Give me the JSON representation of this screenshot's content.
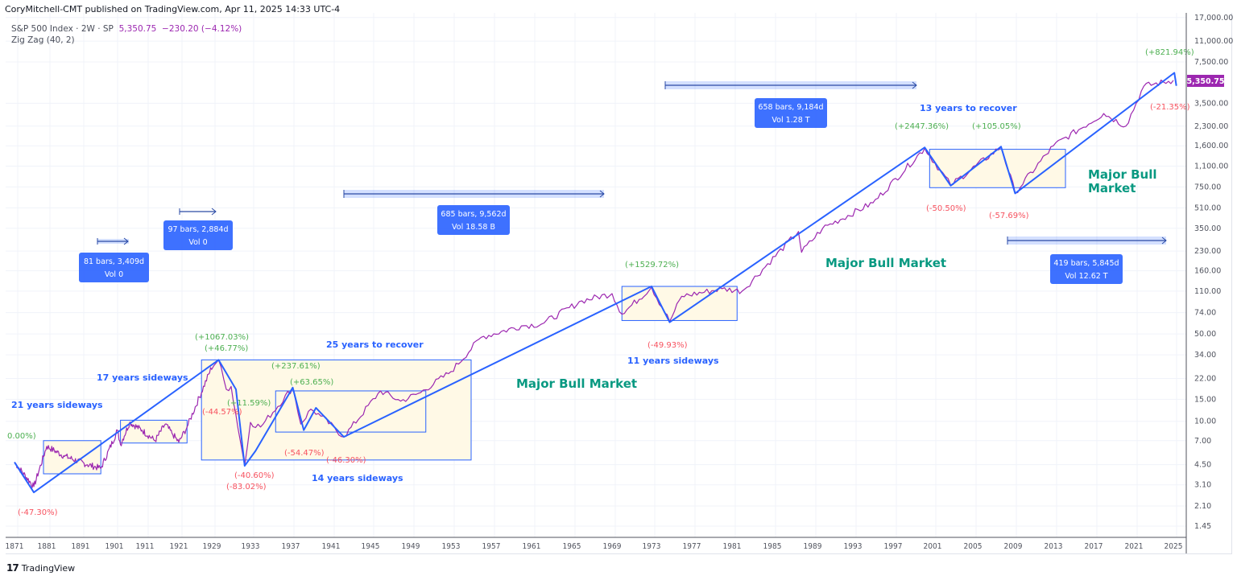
{
  "header": {
    "publisher_line": "CoryMitchell-CMT published on TradingView.com, Apr 11, 2025 14:33 UTC-4"
  },
  "legend": {
    "symbol": "S&P 500 Index · 2W · SP",
    "price": "5,350.75",
    "change": "−230.20 (−4.12%)",
    "indicator": "Zig Zag (40, 2)"
  },
  "price_badge": {
    "value": "5,350.75",
    "color": "#9c27b0"
  },
  "footer": {
    "logo_mark": "17",
    "brand": "TradingView"
  },
  "colors": {
    "price_line": "#9c27b0",
    "zigzag": "#2962ff",
    "range_box_fill": "#fff9e6",
    "range_box_stroke": "#2962ff",
    "up_label": "#4caf50",
    "down_label": "#f7525f",
    "note_blue": "#2962ff",
    "note_green": "#089981",
    "measure_box": "#2962ff"
  },
  "chart_data": {
    "type": "line",
    "title": "S&P 500 Index · 2W · SP",
    "scale": "log",
    "xlabel": "",
    "ylabel": "",
    "x_ticks": [
      "1871",
      "1881",
      "1891",
      "1901",
      "1911",
      "1921",
      "1929",
      "1933",
      "1937",
      "1941",
      "1945",
      "1949",
      "1953",
      "1957",
      "1961",
      "1965",
      "1969",
      "1973",
      "1977",
      "1981",
      "1985",
      "1989",
      "1993",
      "1997",
      "2001",
      "2005",
      "2009",
      "2013",
      "2017",
      "2021",
      "2025"
    ],
    "y_ticks": [
      "17,000.00",
      "11,000.00",
      "7,500.00",
      "3,500.00",
      "2,300.00",
      "1,600.00",
      "1,100.00",
      "750.00",
      "510.00",
      "350.00",
      "230.00",
      "160.00",
      "110.00",
      "74.00",
      "50.00",
      "34.00",
      "22.00",
      "15.00",
      "10.00",
      "7.00",
      "4.50",
      "3.10",
      "2.10",
      "1.45"
    ],
    "ylim": [
      1.3,
      17000
    ],
    "last_value": 5350.75,
    "series": [
      {
        "name": "S&P 500 (2W)",
        "x": [
          1871,
          1877,
          1881,
          1886,
          1893,
          1897,
          1902,
          1903,
          1906,
          1910,
          1914,
          1917,
          1919,
          1921,
          1923,
          1929.7,
          1930.5,
          1931,
          1932.4,
          1933,
          1934,
          1937.2,
          1938,
          1939,
          1940,
          1942.3,
          1946,
          1948,
          1950,
          1953,
          1956,
          1960,
          1962,
          1966,
          1969,
          1970,
          1973,
          1974.8,
          1976,
          1980,
          1982,
          1987.6,
          1987.9,
          1990,
          1995,
          2000.2,
          2002.8,
          2007.8,
          2009.2,
          2013,
          2018,
          2020.2,
          2022,
          2025
        ],
        "values": [
          4.7,
          3.0,
          6.3,
          5.3,
          4.5,
          4.2,
          8.5,
          6.5,
          9.8,
          8.5,
          7.0,
          9.5,
          8.0,
          6.8,
          9.0,
          31,
          18,
          19,
          4.4,
          9.8,
          9.0,
          18.6,
          9.5,
          12.5,
          11.0,
          7.5,
          17.5,
          14.5,
          17,
          25,
          47,
          58,
          60,
          92,
          105,
          72,
          118,
          63,
          100,
          115,
          110,
          330,
          225,
          350,
          560,
          1527,
          776,
          1565,
          676,
          1600,
          2900,
          2300,
          4800,
          5351
        ]
      },
      {
        "name": "Zig Zag (40, 2)",
        "x": [
          1871,
          1877,
          1929.7,
          1931.5,
          1932.4,
          1933.5,
          1937.2,
          1938.3,
          1939.5,
          1942.3,
          1973,
          1974.8,
          2000.2,
          2002.8,
          2007.8,
          2009.2,
          2025.1,
          2025.3
        ],
        "values": [
          4.7,
          2.7,
          31,
          18,
          4.4,
          5.8,
          18.6,
          8.5,
          12.8,
          7.5,
          120,
          62,
          1553,
          768,
          1576,
          666,
          6140,
          4830
        ]
      }
    ],
    "annotations": {
      "zigzag_labels": [
        {
          "text": "0.00%)",
          "type": "up"
        },
        {
          "text": "(-47.30%)",
          "type": "down"
        },
        {
          "text": "(+1067.03%)",
          "type": "up"
        },
        {
          "text": "(+46.77%)",
          "type": "up"
        },
        {
          "text": "(-44.57%)",
          "type": "down"
        },
        {
          "text": "(+11.59%)",
          "type": "up"
        },
        {
          "text": "(-40.60%)",
          "type": "down"
        },
        {
          "text": "(-83.02%)",
          "type": "down"
        },
        {
          "text": "(+237.61%)",
          "type": "up"
        },
        {
          "text": "(+63.65%)",
          "type": "up"
        },
        {
          "text": "(-54.47%)",
          "type": "down"
        },
        {
          "text": "(-46.30%)",
          "type": "down"
        },
        {
          "text": "(+1529.72%)",
          "type": "up"
        },
        {
          "text": "(-49.93%)",
          "type": "down"
        },
        {
          "text": "(+2447.36%)",
          "type": "up"
        },
        {
          "text": "(-50.50%)",
          "type": "down"
        },
        {
          "text": "(+105.05%)",
          "type": "up"
        },
        {
          "text": "(-57.69%)",
          "type": "down"
        },
        {
          "text": "(+821.94%)",
          "type": "up"
        },
        {
          "text": "(-21.35%)",
          "type": "down"
        }
      ],
      "notes": [
        {
          "text": "21 years sideways"
        },
        {
          "text": "17 years sideways"
        },
        {
          "text": "25 years to recover"
        },
        {
          "text": "14 years sideways"
        },
        {
          "text": "11 years sideways"
        },
        {
          "text": "13 years to recover"
        },
        {
          "text": "Major Bull Market"
        },
        {
          "text": "Major Bull Market"
        },
        {
          "text": "Major Bull"
        },
        {
          "text": "Market"
        }
      ],
      "measures": [
        {
          "line1": "81 bars, 3,409d",
          "line2": "Vol 0"
        },
        {
          "line1": "97 bars, 2,884d",
          "line2": "Vol 0"
        },
        {
          "line1": "685 bars, 9,562d",
          "line2": "Vol 18.58 B"
        },
        {
          "line1": "658 bars, 9,184d",
          "line2": "Vol 1.28 T"
        },
        {
          "line1": "419 bars, 5,845d",
          "line2": "Vol 12.62 T"
        }
      ]
    }
  }
}
